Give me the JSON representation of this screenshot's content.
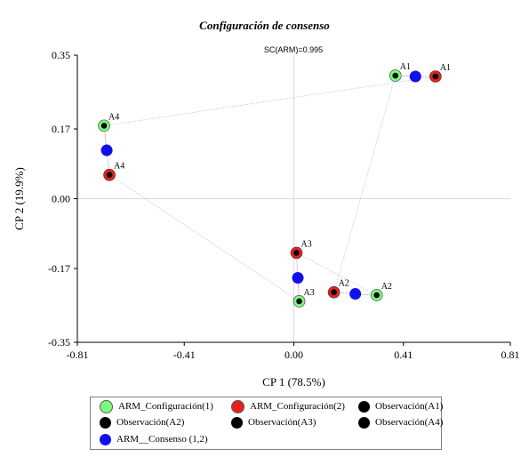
{
  "chart_data": {
    "type": "scatter",
    "title": "Configuración de consenso",
    "subtitle": "SC(ARM)=0.995",
    "xlabel": "CP 1 (78.5%)",
    "ylabel": "CP 2 (19.9%)",
    "xlim": [
      -0.81,
      0.81
    ],
    "ylim": [
      -0.35,
      0.35
    ],
    "xticks": [
      "-0.81",
      "-0.41",
      "0.00",
      "0.41",
      "0.81"
    ],
    "xtick_values": [
      -0.81,
      -0.41,
      0.0,
      0.41,
      0.81
    ],
    "yticks": [
      "0.35",
      "0.17",
      "0.00",
      "-0.17",
      "-0.35"
    ],
    "ytick_values": [
      0.35,
      0.17,
      0.0,
      -0.17,
      -0.35
    ],
    "grid": "zero lines only",
    "legend_position": "bottom",
    "series": [
      {
        "name": "ARM_Configuración(1)",
        "color": "#7CFC7C",
        "marker": "circle-black-dot",
        "points": [
          {
            "label": "A1",
            "x": 0.38,
            "y": 0.3
          },
          {
            "label": "A2",
            "x": 0.31,
            "y": -0.235
          },
          {
            "label": "A3",
            "x": 0.02,
            "y": -0.25
          },
          {
            "label": "A4",
            "x": -0.71,
            "y": 0.178
          }
        ]
      },
      {
        "name": "ARM_Configuración(2)",
        "color": "#E8201C",
        "marker": "circle-black-dot",
        "points": [
          {
            "label": "A1",
            "x": 0.53,
            "y": 0.298
          },
          {
            "label": "A2",
            "x": 0.15,
            "y": -0.228
          },
          {
            "label": "A3",
            "x": 0.01,
            "y": -0.132
          },
          {
            "label": "A4",
            "x": -0.69,
            "y": 0.058
          }
        ]
      },
      {
        "name": "ARM__Consenso (1,2)",
        "color": "#1010EE",
        "marker": "circle",
        "points": [
          {
            "x": 0.455,
            "y": 0.298
          },
          {
            "x": 0.23,
            "y": -0.232
          },
          {
            "x": 0.015,
            "y": -0.193
          },
          {
            "x": -0.7,
            "y": 0.118
          }
        ]
      }
    ],
    "legend": [
      {
        "label": "ARM_Configuración(1)",
        "color": "#7CFC7C"
      },
      {
        "label": "ARM_Configuración(2)",
        "color": "#E8201C"
      },
      {
        "label": "Observación(A1)",
        "color": "#000000"
      },
      {
        "label": "Observación(A2)",
        "color": "#000000"
      },
      {
        "label": "Observación(A3)",
        "color": "#000000"
      },
      {
        "label": "Observación(A4)",
        "color": "#000000"
      },
      {
        "label": "ARM__Consenso (1,2)",
        "color": "#1010EE"
      }
    ]
  }
}
